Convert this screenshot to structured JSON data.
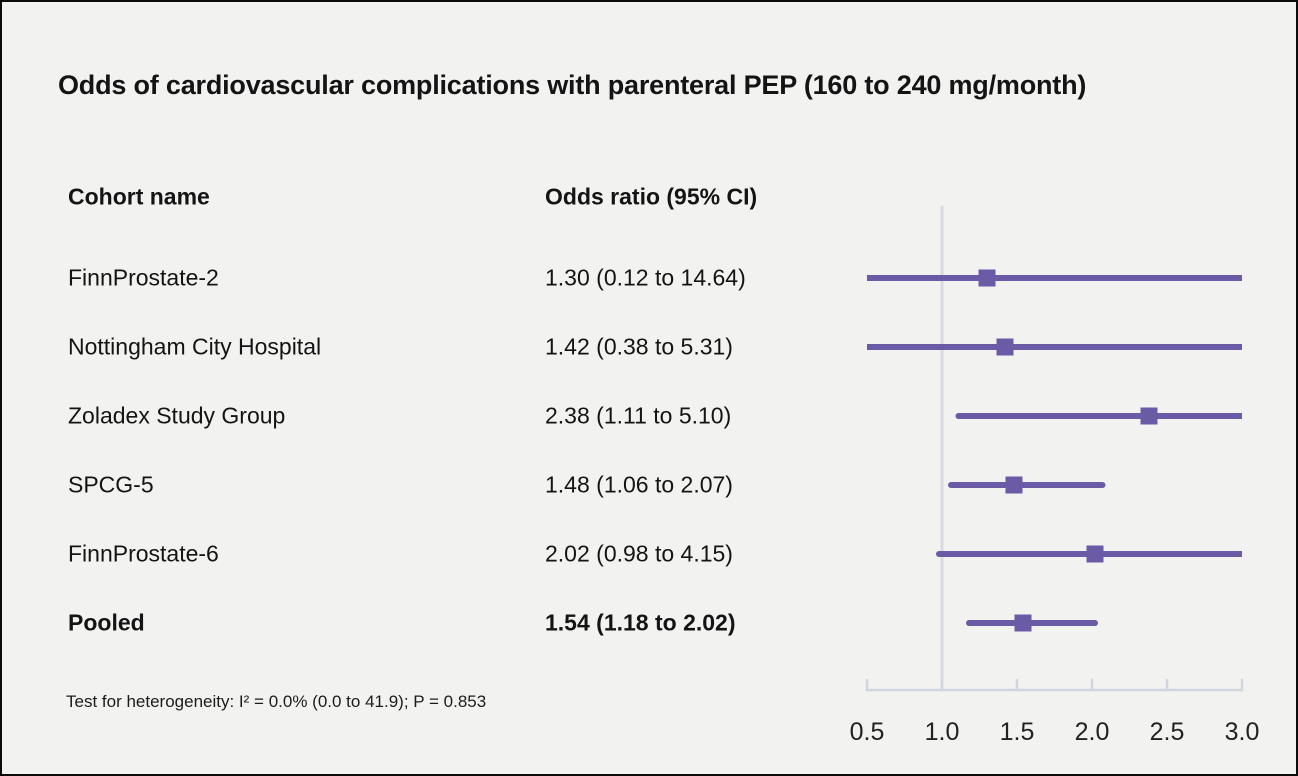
{
  "chart_data": {
    "type": "forest",
    "title": "Odds of cardiovascular complications with parenteral PEP (160 to 240 mg/month)",
    "header": {
      "cohort": "Cohort name",
      "odds_ratio": "Odds ratio (95% CI)"
    },
    "rows": [
      {
        "name": "FinnProstate-2",
        "label": "1.30 (0.12 to 14.64)",
        "est": 1.3,
        "lo": 0.12,
        "hi": 14.64,
        "bold": false
      },
      {
        "name": "Nottingham City Hospital",
        "label": "1.42 (0.38 to 5.31)",
        "est": 1.42,
        "lo": 0.38,
        "hi": 5.31,
        "bold": false
      },
      {
        "name": "Zoladex Study Group",
        "label": "2.38 (1.11 to 5.10)",
        "est": 2.38,
        "lo": 1.11,
        "hi": 5.1,
        "bold": false
      },
      {
        "name": "SPCG-5",
        "label": "1.48 (1.06 to 2.07)",
        "est": 1.48,
        "lo": 1.06,
        "hi": 2.07,
        "bold": false
      },
      {
        "name": "FinnProstate-6",
        "label": "2.02 (0.98 to 4.15)",
        "est": 2.02,
        "lo": 0.98,
        "hi": 4.15,
        "bold": false
      },
      {
        "name": "Pooled",
        "label": "1.54 (1.18 to 2.02)",
        "est": 1.54,
        "lo": 1.18,
        "hi": 2.02,
        "bold": true
      }
    ],
    "x_ticks": [
      0.5,
      1.0,
      1.5,
      2.0,
      2.5,
      3.0
    ],
    "x_tick_labels": [
      "0.5",
      "1.0",
      "1.5",
      "2.0",
      "2.5",
      "3.0"
    ],
    "xlim": [
      0.5,
      3.0
    ],
    "ref_line": 1.0,
    "footnote": "Test for heterogeneity: I² = 0.0% (0.0 to 41.9); P = 0.853",
    "colors": {
      "marker": "#6b5aa6",
      "ci_line": "#6b5aa6",
      "axis": "#d1d6de",
      "reference_line": "#d8dbe3",
      "background": "#f2f2f1",
      "text": "#141414"
    },
    "legend": null,
    "grid": false
  }
}
